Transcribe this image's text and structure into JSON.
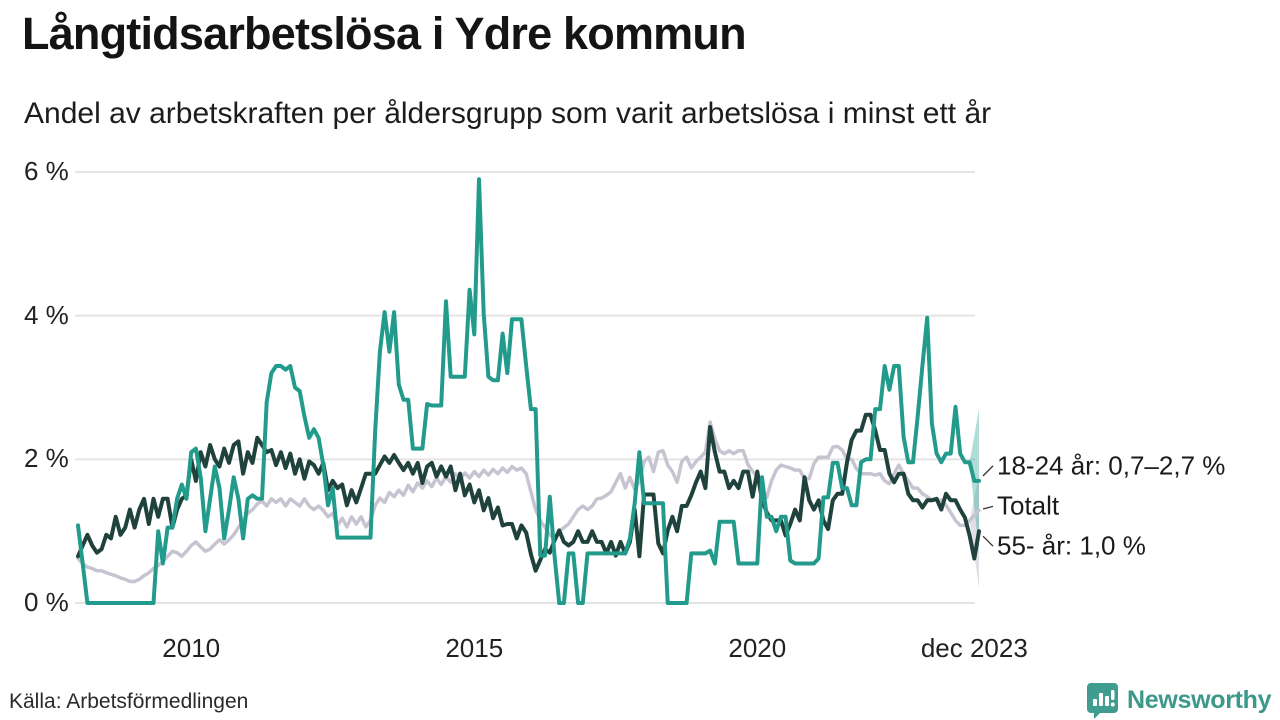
{
  "header": {
    "title": "Långtidsarbetslösa i Ydre kommun",
    "subtitle": "Andel av arbetskraften per åldersgrupp som varit arbetslösa i minst ett år"
  },
  "footer": {
    "source": "Källa: Arbetsförmedlingen",
    "brand_name": "Newsworthy",
    "brand_color": "#3a998b",
    "brand_icon": "speech-bubble-bar-chart-icon"
  },
  "colors": {
    "youth_line": "#239b8c",
    "senior_line": "#20423c",
    "total_line": "#c7c4d1",
    "gridline": "#e4e4e4",
    "text": "#1b1b1b",
    "leader_line": "#333333"
  },
  "chart_data": {
    "type": "line",
    "x_unit": "month",
    "x_start": "2008-01",
    "x_end": "2023-12",
    "ylim": [
      0,
      6
    ],
    "grid": "horizontal-only",
    "y_ticks": [
      {
        "value": 6,
        "label": "6 %"
      },
      {
        "value": 4,
        "label": "4 %"
      },
      {
        "value": 2,
        "label": "2 %"
      },
      {
        "value": 0,
        "label": "0 %"
      }
    ],
    "x_ticks": [
      {
        "month_index": 24,
        "label": "2010"
      },
      {
        "month_index": 84,
        "label": "2015"
      },
      {
        "month_index": 144,
        "label": "2020"
      },
      {
        "month_index": 190,
        "label": "dec 2023"
      }
    ],
    "series": [
      {
        "name": "Totalt",
        "color": "#c7c4d1",
        "width": 3.5,
        "values": [
          0.62,
          0.55,
          0.5,
          0.48,
          0.45,
          0.45,
          0.42,
          0.4,
          0.38,
          0.35,
          0.33,
          0.3,
          0.3,
          0.33,
          0.38,
          0.42,
          0.48,
          0.52,
          0.58,
          0.65,
          0.72,
          0.7,
          0.65,
          0.72,
          0.8,
          0.85,
          0.78,
          0.72,
          0.75,
          0.82,
          0.88,
          0.82,
          0.88,
          0.95,
          1.05,
          1.15,
          1.25,
          1.3,
          1.38,
          1.42,
          1.35,
          1.45,
          1.4,
          1.45,
          1.35,
          1.45,
          1.4,
          1.35,
          1.45,
          1.35,
          1.3,
          1.35,
          1.29,
          1.2,
          1.25,
          1.08,
          1.18,
          1.06,
          1.2,
          1.1,
          1.2,
          1.06,
          1.15,
          1.36,
          1.46,
          1.4,
          1.54,
          1.48,
          1.57,
          1.5,
          1.64,
          1.55,
          1.67,
          1.6,
          1.7,
          1.62,
          1.74,
          1.65,
          1.76,
          1.68,
          1.8,
          1.72,
          1.81,
          1.74,
          1.83,
          1.76,
          1.85,
          1.78,
          1.86,
          1.8,
          1.88,
          1.82,
          1.9,
          1.85,
          1.88,
          1.8,
          1.55,
          1.3,
          1.15,
          1.05,
          0.95,
          0.9,
          1.0,
          1.05,
          1.1,
          1.2,
          1.3,
          1.35,
          1.3,
          1.35,
          1.45,
          1.46,
          1.5,
          1.55,
          1.68,
          1.8,
          1.6,
          1.75,
          1.58,
          1.7,
          1.97,
          2.03,
          1.83,
          2.1,
          2.12,
          1.92,
          1.83,
          1.68,
          1.97,
          2.03,
          1.88,
          1.97,
          2.03,
          2.1,
          2.52,
          2.28,
          2.12,
          2.08,
          2.12,
          2.08,
          2.12,
          2.12,
          1.93,
          1.83,
          1.77,
          1.6,
          1.47,
          1.7,
          1.85,
          1.92,
          1.9,
          1.88,
          1.85,
          1.85,
          1.73,
          1.73,
          1.94,
          2.03,
          2.03,
          2.03,
          2.17,
          2.18,
          2.13,
          2.0,
          2.0,
          1.87,
          1.8,
          1.8,
          1.8,
          1.78,
          1.8,
          1.7,
          1.66,
          1.8,
          1.92,
          1.8,
          1.7,
          1.6,
          1.6,
          1.52,
          1.48,
          1.43,
          1.43,
          1.43,
          1.36,
          1.26,
          1.15,
          1.08,
          1.08,
          1.15,
          1.22,
          1.29
        ]
      },
      {
        "name": "55- år",
        "color": "#20423c",
        "width": 4,
        "values": [
          0.65,
          0.8,
          0.95,
          0.8,
          0.7,
          0.75,
          0.95,
          0.9,
          1.2,
          0.95,
          1.05,
          1.3,
          1.05,
          1.3,
          1.45,
          1.1,
          1.45,
          1.2,
          1.45,
          1.45,
          1.05,
          1.3,
          1.45,
          1.5,
          2.0,
          1.7,
          2.1,
          1.9,
          2.2,
          2.0,
          1.9,
          2.15,
          1.95,
          2.2,
          2.25,
          1.8,
          2.1,
          1.95,
          2.3,
          2.2,
          2.1,
          2.13,
          1.92,
          2.1,
          1.88,
          2.08,
          1.8,
          2.0,
          1.73,
          1.97,
          1.92,
          1.8,
          1.95,
          1.57,
          1.7,
          1.6,
          1.65,
          1.36,
          1.57,
          1.4,
          1.6,
          1.8,
          1.8,
          1.8,
          1.92,
          2.04,
          1.95,
          2.06,
          1.95,
          1.85,
          1.95,
          1.8,
          1.95,
          1.67,
          1.9,
          1.95,
          1.76,
          1.9,
          1.76,
          1.9,
          1.57,
          1.8,
          1.5,
          1.65,
          1.4,
          1.57,
          1.29,
          1.46,
          1.18,
          1.33,
          1.08,
          1.1,
          1.1,
          0.9,
          1.08,
          0.98,
          0.68,
          0.45,
          0.6,
          0.75,
          0.7,
          0.87,
          1.01,
          0.85,
          0.8,
          0.85,
          1.0,
          0.85,
          0.85,
          1.0,
          0.85,
          0.85,
          0.69,
          0.85,
          0.66,
          0.85,
          0.69,
          0.85,
          1.3,
          0.65,
          1.51,
          1.51,
          1.51,
          0.83,
          0.69,
          1.01,
          1.2,
          1.0,
          1.35,
          1.35,
          1.5,
          1.68,
          1.83,
          1.6,
          2.45,
          2.1,
          1.83,
          1.83,
          1.6,
          1.7,
          1.6,
          1.83,
          1.83,
          1.48,
          1.83,
          1.43,
          1.26,
          1.15,
          1.15,
          1.15,
          0.94,
          1.1,
          1.3,
          1.15,
          1.75,
          1.43,
          1.3,
          1.43,
          1.15,
          1.03,
          1.43,
          1.52,
          1.52,
          1.96,
          2.27,
          2.4,
          2.4,
          2.62,
          2.62,
          2.4,
          2.13,
          2.13,
          1.8,
          1.68,
          1.8,
          1.8,
          1.52,
          1.43,
          1.43,
          1.33,
          1.43,
          1.43,
          1.45,
          1.3,
          1.52,
          1.43,
          1.43,
          1.3,
          1.19,
          0.94,
          0.62,
          1.0
        ]
      },
      {
        "name": "18-24 år",
        "color": "#239b8c",
        "width": 4,
        "values": [
          1.08,
          0.55,
          0,
          0,
          0,
          0,
          0,
          0,
          0,
          0,
          0,
          0,
          0,
          0,
          0,
          0,
          0,
          1.0,
          0.55,
          1.05,
          1.05,
          1.45,
          1.65,
          1.45,
          2.1,
          2.15,
          1.75,
          1.0,
          1.45,
          1.9,
          1.6,
          0.9,
          1.3,
          1.75,
          1.45,
          0.9,
          1.45,
          1.5,
          1.45,
          1.45,
          2.8,
          3.2,
          3.3,
          3.3,
          3.25,
          3.3,
          3.0,
          2.95,
          2.6,
          2.3,
          2.42,
          2.3,
          1.92,
          1.36,
          1.6,
          0.91,
          0.91,
          0.91,
          0.91,
          0.91,
          0.91,
          0.91,
          0.91,
          2.4,
          3.5,
          4.05,
          3.5,
          4.05,
          3.04,
          2.83,
          2.83,
          2.15,
          2.15,
          2.15,
          2.77,
          2.75,
          2.75,
          2.75,
          4.2,
          3.15,
          3.15,
          3.15,
          3.15,
          4.36,
          3.74,
          5.9,
          4.03,
          3.15,
          3.1,
          3.1,
          3.75,
          3.2,
          3.95,
          3.95,
          3.95,
          3.3,
          2.7,
          2.7,
          0.66,
          0.66,
          1.48,
          0.66,
          0,
          0,
          0.69,
          0.69,
          0,
          0,
          0.69,
          0.69,
          0.69,
          0.69,
          0.69,
          0.69,
          0.69,
          0.69,
          0.69,
          0.9,
          1.39,
          2.1,
          1.39,
          1.39,
          1.39,
          1.39,
          1.39,
          0,
          0,
          0,
          0,
          0,
          0.69,
          0.69,
          0.69,
          0.69,
          0.73,
          0.55,
          1.13,
          1.13,
          1.13,
          1.13,
          0.55,
          0.55,
          0.55,
          0.55,
          0.55,
          1.75,
          1.2,
          1.2,
          1.0,
          1.2,
          1.2,
          0.59,
          0.55,
          0.55,
          0.55,
          0.55,
          0.55,
          0.62,
          1.47,
          1.47,
          1.95,
          1.95,
          1.6,
          1.6,
          1.36,
          1.36,
          1.96,
          2.0,
          2.0,
          2.7,
          2.7,
          3.3,
          2.97,
          3.3,
          3.3,
          2.31,
          1.96,
          1.96,
          2.6,
          3.3,
          3.97,
          2.5,
          2.08,
          1.96,
          2.08,
          2.08,
          2.73,
          2.08,
          1.96,
          1.96,
          1.7,
          1.7
        ]
      }
    ],
    "uncertainty_bands": [
      {
        "series": "Totalt",
        "from_month_index": 189,
        "lo": 0.2,
        "hi": 1.8,
        "color": "#c7c4d1",
        "opacity": 0.55
      },
      {
        "series": "18-24 år",
        "from_month_index": 189,
        "lo": 0.7,
        "hi": 2.7,
        "color": "#239b8c",
        "opacity": 0.35
      }
    ],
    "annotations": [
      {
        "text": "18-24 år: 0,7–2,7 %",
        "series": "18-24 år"
      },
      {
        "text": "Totalt",
        "series": "Totalt"
      },
      {
        "text": "55- år: 1,0 %",
        "series": "55- år"
      }
    ]
  }
}
